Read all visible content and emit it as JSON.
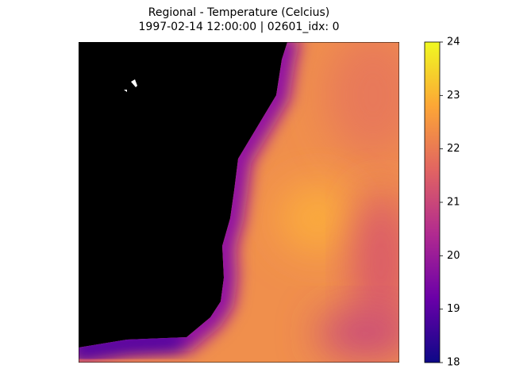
{
  "chart_data": {
    "type": "heatmap",
    "title": "Regional - Temperature (Celcius)",
    "subtitle": "1997-02-14 12:00:00 | 02601_idx: 0",
    "colorbar": {
      "lim": [
        18,
        24
      ],
      "ticks": [
        18,
        19,
        20,
        21,
        22,
        23,
        24
      ],
      "colors": [
        "#0d0887",
        "#6a00a8",
        "#b12a90",
        "#e16462",
        "#fca636",
        "#f0f921"
      ]
    }
  }
}
